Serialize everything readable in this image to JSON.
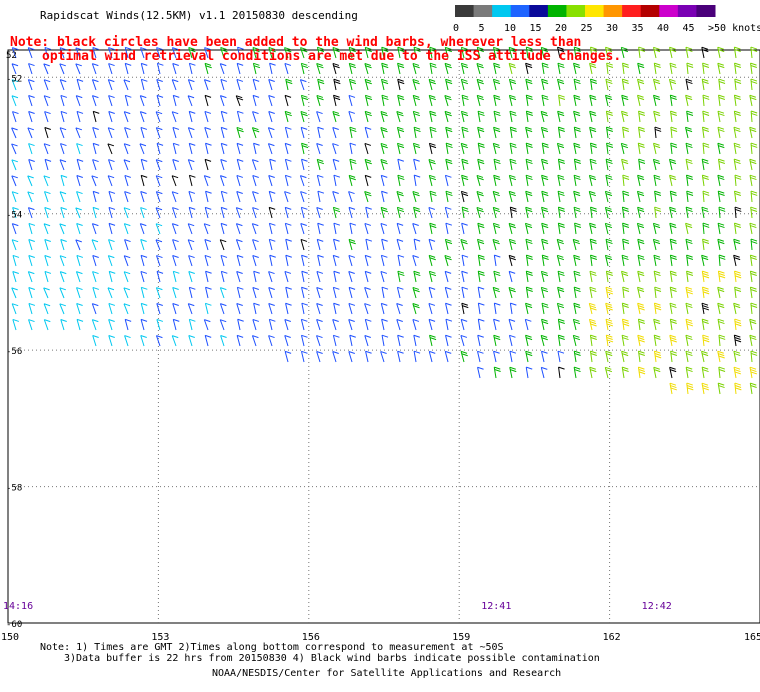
{
  "title": "Rapidscat Winds(12.5KM) v1.1 20150830 descending",
  "note_lines": [
    "Note: black circles have been added to the wind barbs, wherever less than",
    "optimal wind retrieval conditions are met due to the ISS attitude changes."
  ],
  "colorbar": {
    "labels": [
      "0",
      "5",
      "10",
      "15",
      "20",
      "25",
      "30",
      "35",
      "40",
      "45",
      ">50 knots"
    ],
    "colors": [
      "#3a3a3a",
      "#7a7a7a",
      "#00c8f0",
      "#1e64ff",
      "#0a0a9a",
      "#00b400",
      "#88e000",
      "#ffe600",
      "#ff9600",
      "#ff1e1e",
      "#b40000",
      "#cc00cc",
      "#7a00b4",
      "#4a007a"
    ]
  },
  "footer": {
    "line1": "Note: 1) Times are GMT 2)Times along bottom correspond to measurement at ~50S",
    "line2": "3)Data buffer is 22 hrs from 20150830 4) Black wind barbs indicate possible contamination",
    "credit": "NOAA/NESDIS/Center for Satellite Applications and Research"
  },
  "chart_data": {
    "type": "wind-barb map",
    "title": "Rapidscat Winds(12.5KM) v1.1 20150830 descending",
    "x_axis": {
      "ticks": [
        "150",
        "153",
        "156",
        "159",
        "162",
        "165"
      ],
      "range": [
        150,
        165
      ]
    },
    "y_axis": {
      "ticks": [
        "-52",
        "-54",
        "-56",
        "-58",
        "-60"
      ],
      "range": [
        -60,
        -51.6
      ],
      "tick_labels_shown": [
        "52",
        "-52",
        "-54",
        "-56",
        "-58",
        "-60"
      ]
    },
    "time_labels": [
      {
        "lon": 150,
        "text": "14:16"
      },
      {
        "lon": 159.4,
        "text": "12:41"
      },
      {
        "lon": 162.6,
        "text": "12:42"
      }
    ],
    "grid": "dotted",
    "speed_units": "knots",
    "color_scale_knots": [
      0,
      5,
      10,
      15,
      20,
      25,
      30,
      35,
      40,
      45,
      50
    ]
  }
}
